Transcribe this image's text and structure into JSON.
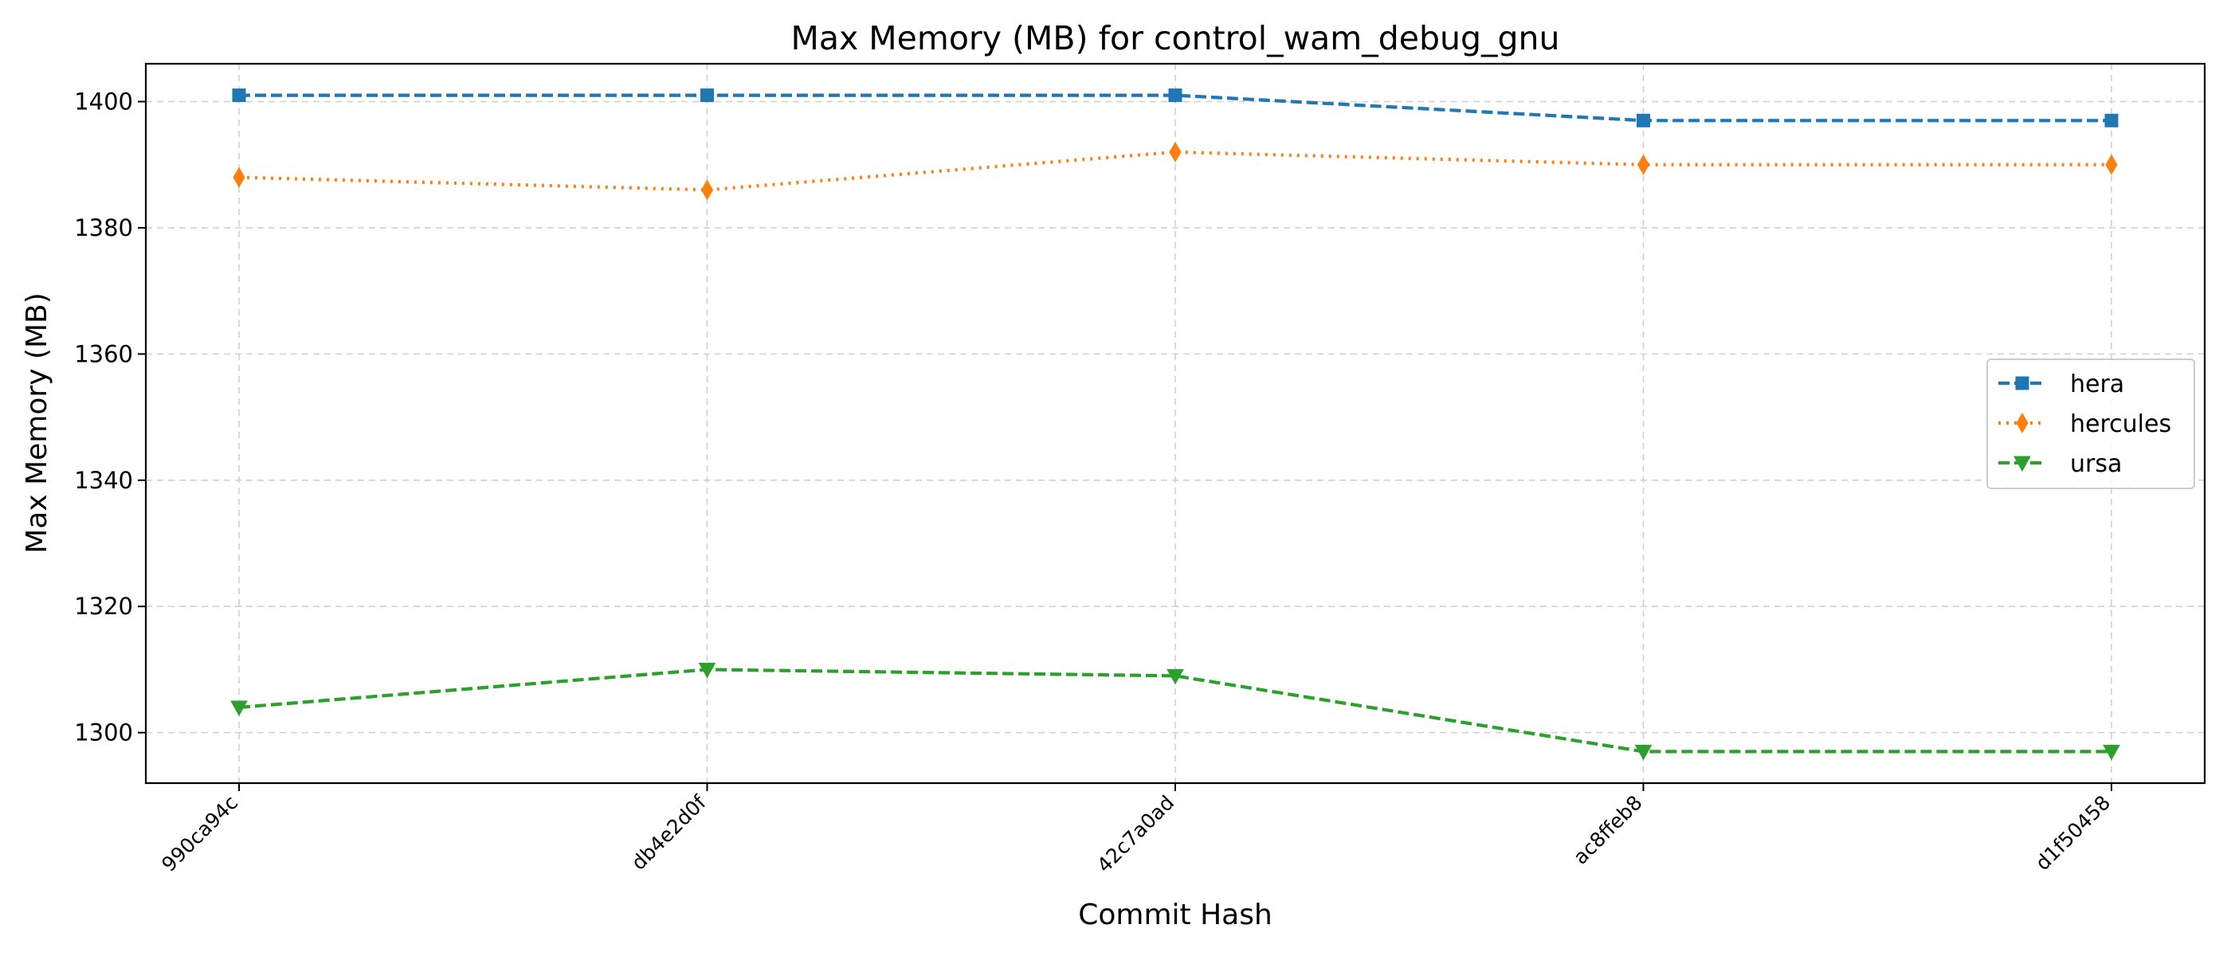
{
  "chart_data": {
    "type": "line",
    "title": "Max Memory (MB) for control_wam_debug_gnu",
    "xlabel": "Commit Hash",
    "ylabel": "Max Memory (MB)",
    "categories": [
      "990ca94c",
      "db4e2d0f",
      "42c7a0ad",
      "ac8ffeb8",
      "d1f50458"
    ],
    "ylim": [
      1292,
      1406
    ],
    "yticks": [
      1300,
      1320,
      1340,
      1360,
      1380,
      1400
    ],
    "grid": true,
    "legend_position": "center-right",
    "series": [
      {
        "name": "hera",
        "values": [
          1401,
          1401,
          1401,
          1397,
          1397
        ],
        "color": "#1f77b4",
        "linestyle": "dashed",
        "marker": "square"
      },
      {
        "name": "hercules",
        "values": [
          1388,
          1386,
          1392,
          1390,
          1390
        ],
        "color": "#ff7f0e",
        "linestyle": "dotted",
        "marker": "thin_diamond"
      },
      {
        "name": "ursa",
        "values": [
          1304,
          1310,
          1309,
          1297,
          1297
        ],
        "color": "#2ca02c",
        "linestyle": "dashed",
        "marker": "triangle_down"
      }
    ]
  }
}
